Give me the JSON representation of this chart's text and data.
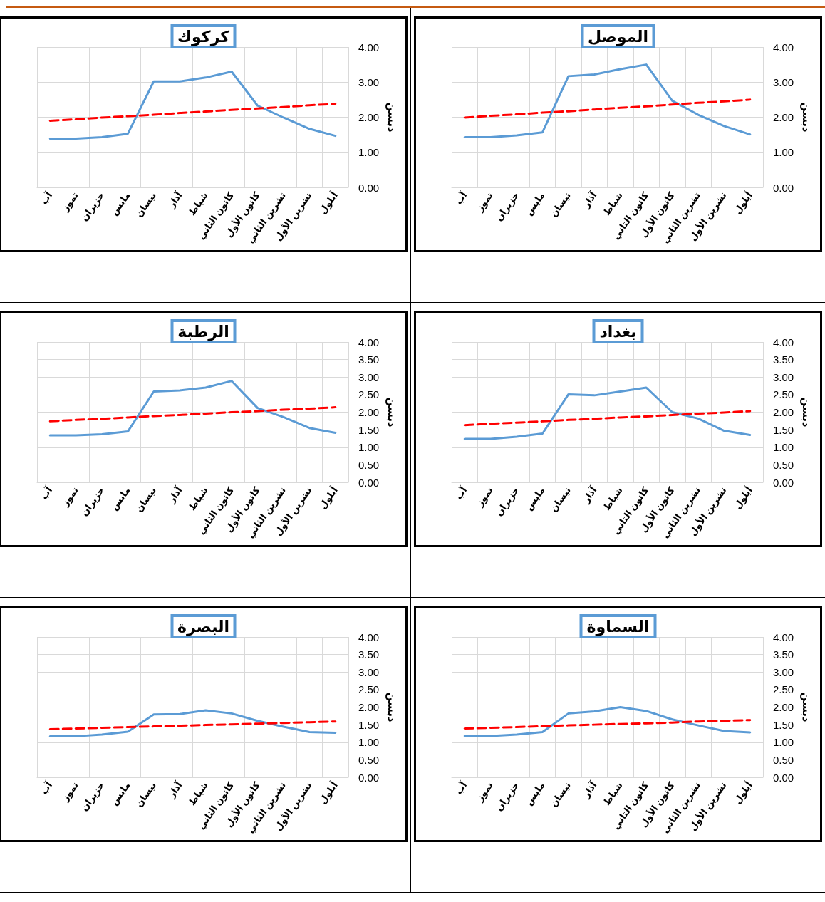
{
  "chart_data": [
    {
      "type": "line",
      "title": "الموصل",
      "ylabel": "دبسن",
      "categories": [
        "آب",
        "تموز",
        "حزيران",
        "مايس",
        "نيسان",
        "آذار",
        "شباط",
        "كانون الثاني",
        "كانون الأول",
        "تشرين الثاني",
        "تشرين الأول",
        "أيلول"
      ],
      "series": [
        {
          "color": "#5b9bd5",
          "values": [
            1.43,
            1.43,
            1.48,
            1.57,
            3.17,
            3.22,
            3.37,
            3.5,
            2.47,
            2.07,
            1.75,
            1.51
          ]
        },
        {
          "color": "#ff0000",
          "line_style": "dashed",
          "values": [
            1.99,
            2.04,
            2.08,
            2.13,
            2.17,
            2.22,
            2.27,
            2.31,
            2.36,
            2.41,
            2.45,
            2.5
          ]
        }
      ],
      "ylim": [
        0,
        4
      ],
      "yticks": [
        {
          "value": 0,
          "label": "0.00"
        },
        {
          "value": 1,
          "label": "1.00"
        },
        {
          "value": 2,
          "label": "2.00"
        },
        {
          "value": 3,
          "label": "3.00"
        },
        {
          "value": 4,
          "label": "4.00"
        }
      ],
      "grid": true,
      "marker": "none",
      "line_style": "solid"
    },
    {
      "type": "line",
      "title": "كركوك",
      "ylabel": "دبسن",
      "categories": [
        "آب",
        "تموز",
        "حزيران",
        "مايس",
        "نيسان",
        "آذار",
        "شباط",
        "كانون الثاني",
        "كانون الأول",
        "تشرين الثاني",
        "تشرين الأول",
        "أيلول"
      ],
      "series": [
        {
          "color": "#5b9bd5",
          "values": [
            1.39,
            1.39,
            1.43,
            1.53,
            3.02,
            3.02,
            3.13,
            3.3,
            2.33,
            1.99,
            1.67,
            1.47
          ]
        },
        {
          "color": "#ff0000",
          "line_style": "dashed",
          "values": [
            1.9,
            1.94,
            1.99,
            2.03,
            2.07,
            2.12,
            2.16,
            2.21,
            2.25,
            2.29,
            2.34,
            2.38
          ]
        }
      ],
      "ylim": [
        0,
        4
      ],
      "yticks": [
        {
          "value": 0,
          "label": "0.00"
        },
        {
          "value": 1,
          "label": "1.00"
        },
        {
          "value": 2,
          "label": "2.00"
        },
        {
          "value": 3,
          "label": "3.00"
        },
        {
          "value": 4,
          "label": "4.00"
        }
      ],
      "grid": true,
      "marker": "none",
      "line_style": "solid"
    },
    {
      "type": "line",
      "title": "بغداد",
      "ylabel": "دبسن",
      "categories": [
        "آب",
        "تموز",
        "حزيران",
        "مايس",
        "نيسان",
        "آذار",
        "شباط",
        "كانون الثاني",
        "كانون الأول",
        "تشرين الثاني",
        "تشرين الأول",
        "أيلول"
      ],
      "series": [
        {
          "color": "#5b9bd5",
          "values": [
            1.24,
            1.24,
            1.3,
            1.39,
            2.51,
            2.48,
            2.59,
            2.7,
            2.0,
            1.82,
            1.47,
            1.35
          ]
        },
        {
          "color": "#ff0000",
          "line_style": "dashed",
          "values": [
            1.63,
            1.67,
            1.7,
            1.74,
            1.78,
            1.81,
            1.85,
            1.88,
            1.92,
            1.96,
            1.99,
            2.03
          ]
        }
      ],
      "ylim": [
        0,
        4
      ],
      "yticks": [
        {
          "value": 0,
          "label": "0.00"
        },
        {
          "value": 0.5,
          "label": "0.50"
        },
        {
          "value": 1,
          "label": "1.00"
        },
        {
          "value": 1.5,
          "label": "1.50"
        },
        {
          "value": 2,
          "label": "2.00"
        },
        {
          "value": 2.5,
          "label": "2.50"
        },
        {
          "value": 3,
          "label": "3.00"
        },
        {
          "value": 3.5,
          "label": "3.50"
        },
        {
          "value": 4,
          "label": "4.00"
        }
      ],
      "grid": true,
      "marker": "none",
      "line_style": "solid"
    },
    {
      "type": "line",
      "title": "الرطبة",
      "ylabel": "دبسن",
      "categories": [
        "آب",
        "تموز",
        "حزيران",
        "مايس",
        "نيسان",
        "آذار",
        "شباط",
        "كانون الثاني",
        "كانون الأول",
        "تشرين الثاني",
        "تشرين الأول",
        "أيلول"
      ],
      "series": [
        {
          "color": "#5b9bd5",
          "values": [
            1.34,
            1.34,
            1.37,
            1.45,
            2.59,
            2.62,
            2.7,
            2.89,
            2.12,
            1.86,
            1.55,
            1.41
          ]
        },
        {
          "color": "#ff0000",
          "line_style": "dashed",
          "values": [
            1.74,
            1.78,
            1.81,
            1.85,
            1.89,
            1.92,
            1.96,
            2.0,
            2.03,
            2.07,
            2.1,
            2.14
          ]
        }
      ],
      "ylim": [
        0,
        4
      ],
      "yticks": [
        {
          "value": 0,
          "label": "0.00"
        },
        {
          "value": 0.5,
          "label": "0.50"
        },
        {
          "value": 1,
          "label": "1.00"
        },
        {
          "value": 1.5,
          "label": "1.50"
        },
        {
          "value": 2,
          "label": "2.00"
        },
        {
          "value": 2.5,
          "label": "2.50"
        },
        {
          "value": 3,
          "label": "3.00"
        },
        {
          "value": 3.5,
          "label": "3.50"
        },
        {
          "value": 4,
          "label": "4.00"
        }
      ],
      "grid": true,
      "marker": "none",
      "line_style": "solid"
    },
    {
      "type": "line",
      "title": "السماوة",
      "ylabel": "دبسن",
      "categories": [
        "آب",
        "تموز",
        "حزيران",
        "مايس",
        "نيسان",
        "آذار",
        "شباط",
        "كانون الثاني",
        "كانون الأول",
        "تشرين الثاني",
        "تشرين الأول",
        "أيلول"
      ],
      "series": [
        {
          "color": "#5b9bd5",
          "values": [
            1.18,
            1.18,
            1.22,
            1.29,
            1.82,
            1.88,
            2.0,
            1.89,
            1.65,
            1.48,
            1.32,
            1.28
          ]
        },
        {
          "color": "#ff0000",
          "line_style": "dashed",
          "values": [
            1.39,
            1.41,
            1.43,
            1.46,
            1.48,
            1.5,
            1.52,
            1.54,
            1.56,
            1.59,
            1.61,
            1.63
          ]
        }
      ],
      "ylim": [
        0,
        4
      ],
      "yticks": [
        {
          "value": 0,
          "label": "0.00"
        },
        {
          "value": 0.5,
          "label": "0.50"
        },
        {
          "value": 1,
          "label": "1.00"
        },
        {
          "value": 1.5,
          "label": "1.50"
        },
        {
          "value": 2,
          "label": "2.00"
        },
        {
          "value": 2.5,
          "label": "2.50"
        },
        {
          "value": 3,
          "label": "3.00"
        },
        {
          "value": 3.5,
          "label": "3.50"
        },
        {
          "value": 4,
          "label": "4.00"
        }
      ],
      "grid": true,
      "marker": "none",
      "line_style": "solid"
    },
    {
      "type": "line",
      "title": "البصرة",
      "ylabel": "دبسن",
      "categories": [
        "آب",
        "تموز",
        "حزيران",
        "مايس",
        "نيسان",
        "آذار",
        "شباط",
        "كانون الثاني",
        "كانون الأول",
        "تشرين الثاني",
        "تشرين الأول",
        "أيلول"
      ],
      "series": [
        {
          "color": "#5b9bd5",
          "values": [
            1.17,
            1.17,
            1.22,
            1.3,
            1.79,
            1.8,
            1.91,
            1.82,
            1.61,
            1.44,
            1.29,
            1.27
          ]
        },
        {
          "color": "#ff0000",
          "line_style": "dashed",
          "values": [
            1.37,
            1.39,
            1.41,
            1.43,
            1.45,
            1.47,
            1.49,
            1.51,
            1.53,
            1.55,
            1.57,
            1.59
          ]
        }
      ],
      "ylim": [
        0,
        4
      ],
      "yticks": [
        {
          "value": 0,
          "label": "0.00"
        },
        {
          "value": 0.5,
          "label": "0.50"
        },
        {
          "value": 1,
          "label": "1.00"
        },
        {
          "value": 1.5,
          "label": "1.50"
        },
        {
          "value": 2,
          "label": "2.00"
        },
        {
          "value": 2.5,
          "label": "2.50"
        },
        {
          "value": 3,
          "label": "3.00"
        },
        {
          "value": 3.5,
          "label": "3.50"
        },
        {
          "value": 4,
          "label": "4.00"
        }
      ],
      "grid": true,
      "marker": "none",
      "line_style": "solid"
    }
  ]
}
